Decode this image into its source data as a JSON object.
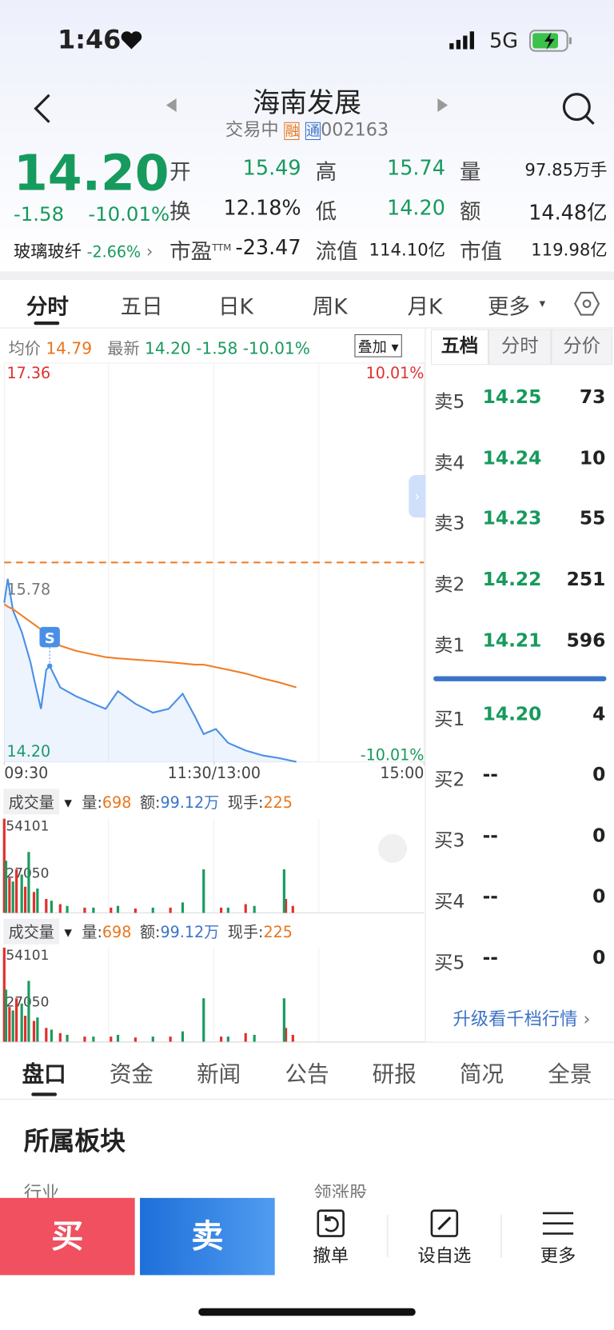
{
  "status_bar": {
    "time": "1:46",
    "network": "5G"
  },
  "header": {
    "title": "海南发展",
    "status": "交易中",
    "badges": [
      "融",
      "通"
    ],
    "code": "002163"
  },
  "quote": {
    "price": "14.20",
    "change": "-1.58",
    "change_pct": "-10.01%",
    "sector": "玻璃玻纤",
    "sector_change": "-2.66%",
    "fields": [
      {
        "label": "开",
        "value": "15.49"
      },
      {
        "label": "高",
        "value": "15.74"
      },
      {
        "label": "量",
        "value": "97.85万手"
      },
      {
        "label": "换",
        "value": "12.18%"
      },
      {
        "label": "低",
        "value": "14.20"
      },
      {
        "label": "额",
        "value": "14.48亿"
      },
      {
        "label": "市盈",
        "sup": "TTM",
        "value": "-23.47"
      },
      {
        "label": "流值",
        "value": "114.10亿"
      },
      {
        "label": "市值",
        "value": "119.98亿"
      }
    ]
  },
  "chart_tabs": [
    "分时",
    "五日",
    "日K",
    "周K",
    "月K",
    "更多"
  ],
  "chart_info": {
    "avg_label": "均价",
    "avg": "14.79",
    "latest_label": "最新",
    "latest": "14.20",
    "change": "-1.58",
    "change_pct": "-10.01%",
    "overlay": "叠加"
  },
  "volume_info": {
    "label": "成交量",
    "vol_label": "量:",
    "vol": "698",
    "amt_label": "额:",
    "amt": "99.12万",
    "hand_label": "现手:",
    "hand": "225"
  },
  "chart_data": [
    {
      "type": "line",
      "x": [
        0,
        2,
        5,
        10,
        15,
        17,
        21,
        24,
        26,
        32,
        41,
        51,
        58,
        65,
        75,
        85,
        94,
        102,
        109,
        114,
        121,
        128,
        138,
        148,
        157,
        167
      ],
      "xlim": [
        0,
        240
      ],
      "xticks": [
        {
          "value": 0,
          "label": "09:30"
        },
        {
          "value": 120,
          "label": "11:30/13:00"
        },
        {
          "value": 240,
          "label": "15:00"
        }
      ],
      "ylim": [
        14.2,
        17.36
      ],
      "yticks": [
        {
          "value": 14.2,
          "label": "14.20"
        },
        15.78,
        17.36
      ],
      "y2lim": [
        -10.01,
        10.01
      ],
      "y2ticks": [
        {
          "value": -10.01,
          "label": "-10.01%"
        },
        {
          "value": 10.01,
          "label": "10.01%"
        }
      ],
      "reference": 15.78,
      "annotation": {
        "text": "S",
        "x": 26
      },
      "series": [
        {
          "color": "#4a8fe7",
          "values": [
            15.46,
            15.65,
            15.4,
            15.23,
            14.99,
            14.86,
            14.62,
            14.93,
            14.96,
            14.79,
            14.72,
            14.66,
            14.62,
            14.76,
            14.66,
            14.59,
            14.62,
            14.74,
            14.56,
            14.42,
            14.46,
            14.35,
            14.29,
            14.25,
            14.23,
            14.2
          ]
        },
        {
          "color": "#f07f2a",
          "values": [
            15.45,
            15.43,
            15.41,
            15.36,
            15.31,
            15.29,
            15.25,
            15.22,
            15.19,
            15.12,
            15.08,
            15.05,
            15.03,
            15.02,
            15.01,
            15,
            14.99,
            14.98,
            14.97,
            14.97,
            14.95,
            14.93,
            14.9,
            14.86,
            14.83,
            14.79
          ]
        }
      ]
    },
    {
      "type": "bar",
      "xlim": [
        0,
        240
      ],
      "ylim": [
        0,
        54101
      ],
      "yticks": [
        27050,
        54101
      ],
      "series": [
        {
          "color": "#e0302f",
          "x": [
            0,
            3,
            7,
            12,
            17,
            24,
            32,
            46,
            61,
            75,
            95,
            124,
            138,
            161,
            165
          ],
          "values": [
            54101,
            20000,
            25000,
            15000,
            12000,
            8000,
            5000,
            3000,
            3000,
            2500,
            3000,
            3000,
            5000,
            8000,
            4000
          ]
        },
        {
          "color": "#1a9b5e",
          "x": [
            1,
            5,
            10,
            14,
            19,
            27,
            36,
            51,
            65,
            85,
            102,
            114,
            128,
            143,
            160
          ],
          "values": [
            30000,
            18000,
            22000,
            35000,
            14000,
            7000,
            4000,
            3000,
            4000,
            3000,
            6000,
            25000,
            3000,
            4000,
            25000
          ]
        }
      ]
    }
  ],
  "order_book": {
    "tabs": [
      "五档",
      "分时",
      "分价"
    ],
    "asks": [
      {
        "label": "卖5",
        "price": "14.25",
        "volume": "73"
      },
      {
        "label": "卖4",
        "price": "14.24",
        "volume": "10"
      },
      {
        "label": "卖3",
        "price": "14.23",
        "volume": "55"
      },
      {
        "label": "卖2",
        "price": "14.22",
        "volume": "251"
      },
      {
        "label": "卖1",
        "price": "14.21",
        "volume": "596"
      }
    ],
    "bids": [
      {
        "label": "买1",
        "price": "14.20",
        "volume": "4"
      },
      {
        "label": "买2",
        "price": "--",
        "volume": "0"
      },
      {
        "label": "买3",
        "price": "--",
        "volume": "0"
      },
      {
        "label": "买4",
        "price": "--",
        "volume": "0"
      },
      {
        "label": "买5",
        "price": "--",
        "volume": "0"
      }
    ],
    "upgrade": "升级看千档行情"
  },
  "bottom_tabs": [
    "盘口",
    "资金",
    "新闻",
    "公告",
    "研报",
    "简况",
    "全景"
  ],
  "section": {
    "title": "所属板块",
    "col1": "行业",
    "col2": "领涨股"
  },
  "actions": {
    "buy": "买",
    "sell": "卖",
    "cancel": "撤单",
    "watch": "设自选",
    "more": "更多"
  }
}
